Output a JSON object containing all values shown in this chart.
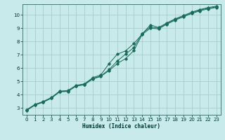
{
  "xlabel": "Humidex (Indice chaleur)",
  "ylabel": "",
  "bg_color": "#c8eaea",
  "grid_color": "#a8cccc",
  "line_color": "#1a6b5a",
  "xlim": [
    -0.5,
    23.5
  ],
  "ylim": [
    2.5,
    10.8
  ],
  "xticks": [
    0,
    1,
    2,
    3,
    4,
    5,
    6,
    7,
    8,
    9,
    10,
    11,
    12,
    13,
    14,
    15,
    16,
    17,
    18,
    19,
    20,
    21,
    22,
    23
  ],
  "yticks": [
    3,
    4,
    5,
    6,
    7,
    8,
    9,
    10
  ],
  "line1_x": [
    0,
    1,
    2,
    3,
    4,
    5,
    6,
    7,
    8,
    9,
    10,
    11,
    12,
    13,
    14,
    15,
    16,
    17,
    18,
    19,
    20,
    21,
    22,
    23
  ],
  "line1_y": [
    2.88,
    3.28,
    3.5,
    3.8,
    4.28,
    4.32,
    4.72,
    4.82,
    5.28,
    5.5,
    6.35,
    7.05,
    7.3,
    7.85,
    8.55,
    9.25,
    9.05,
    9.4,
    9.7,
    9.95,
    10.2,
    10.4,
    10.55,
    10.65
  ],
  "line2_x": [
    0,
    1,
    2,
    3,
    4,
    5,
    6,
    7,
    8,
    9,
    10,
    11,
    12,
    13,
    14,
    15,
    16,
    17,
    18,
    19,
    20,
    21,
    22,
    23
  ],
  "line2_y": [
    2.85,
    3.25,
    3.47,
    3.77,
    4.25,
    4.28,
    4.68,
    4.78,
    5.22,
    5.42,
    5.9,
    6.55,
    7.05,
    7.55,
    8.6,
    9.1,
    9.0,
    9.35,
    9.65,
    9.9,
    10.15,
    10.35,
    10.5,
    10.6
  ],
  "line3_x": [
    0,
    1,
    2,
    3,
    4,
    5,
    6,
    7,
    8,
    9,
    10,
    11,
    12,
    13,
    14,
    15,
    16,
    17,
    18,
    19,
    20,
    21,
    22,
    23
  ],
  "line3_y": [
    2.82,
    3.22,
    3.44,
    3.74,
    4.22,
    4.25,
    4.65,
    4.75,
    5.18,
    5.38,
    5.82,
    6.35,
    6.72,
    7.32,
    8.52,
    9.0,
    8.95,
    9.3,
    9.6,
    9.85,
    10.1,
    10.3,
    10.45,
    10.55
  ]
}
